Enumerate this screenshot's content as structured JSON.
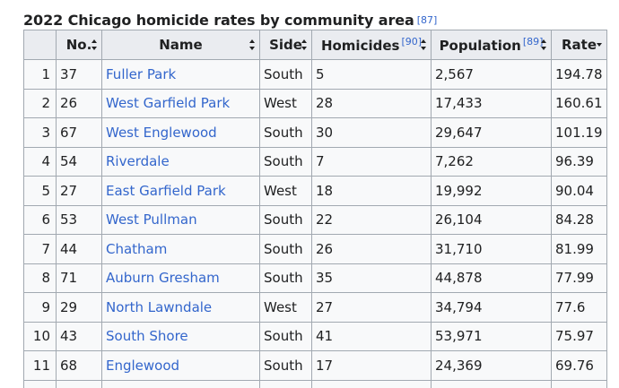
{
  "caption": {
    "title": "2022 Chicago homicide rates by community area",
    "ref": "[87]"
  },
  "columns": [
    {
      "label": "",
      "ref": "",
      "sort": "none"
    },
    {
      "label": "No.",
      "ref": "",
      "sort": "both"
    },
    {
      "label": "Name",
      "ref": "",
      "sort": "both"
    },
    {
      "label": "Side",
      "ref": "",
      "sort": "both"
    },
    {
      "label": "Homicides",
      "ref": "[90]",
      "sort": "both"
    },
    {
      "label": "Population",
      "ref": "[89]",
      "sort": "both"
    },
    {
      "label": "Rate",
      "ref": "",
      "sort": "desc"
    }
  ],
  "rows": [
    {
      "rank": "1",
      "no": "37",
      "name": "Fuller Park",
      "side": "South",
      "homicides": "5",
      "population": "2,567",
      "rate": "194.78"
    },
    {
      "rank": "2",
      "no": "26",
      "name": "West Garfield Park",
      "side": "West",
      "homicides": "28",
      "population": "17,433",
      "rate": "160.61"
    },
    {
      "rank": "3",
      "no": "67",
      "name": "West Englewood",
      "side": "South",
      "homicides": "30",
      "population": "29,647",
      "rate": "101.19"
    },
    {
      "rank": "4",
      "no": "54",
      "name": "Riverdale",
      "side": "South",
      "homicides": "7",
      "population": "7,262",
      "rate": "96.39"
    },
    {
      "rank": "5",
      "no": "27",
      "name": "East Garfield Park",
      "side": "West",
      "homicides": "18",
      "population": "19,992",
      "rate": "90.04"
    },
    {
      "rank": "6",
      "no": "53",
      "name": "West Pullman",
      "side": "South",
      "homicides": "22",
      "population": "26,104",
      "rate": "84.28"
    },
    {
      "rank": "7",
      "no": "44",
      "name": "Chatham",
      "side": "South",
      "homicides": "26",
      "population": "31,710",
      "rate": "81.99"
    },
    {
      "rank": "8",
      "no": "71",
      "name": "Auburn Gresham",
      "side": "South",
      "homicides": "35",
      "population": "44,878",
      "rate": "77.99"
    },
    {
      "rank": "9",
      "no": "29",
      "name": "North Lawndale",
      "side": "West",
      "homicides": "27",
      "population": "34,794",
      "rate": "77.6"
    },
    {
      "rank": "10",
      "no": "43",
      "name": "South Shore",
      "side": "South",
      "homicides": "41",
      "population": "53,971",
      "rate": "75.97"
    },
    {
      "rank": "11",
      "no": "68",
      "name": "Englewood",
      "side": "South",
      "homicides": "17",
      "population": "24,369",
      "rate": "69.76"
    }
  ],
  "colors": {
    "link": "#3366cc",
    "header_bg": "#eaecf0",
    "cell_bg": "#f8f9fa",
    "border": "#a2a9b1",
    "text": "#202122"
  }
}
